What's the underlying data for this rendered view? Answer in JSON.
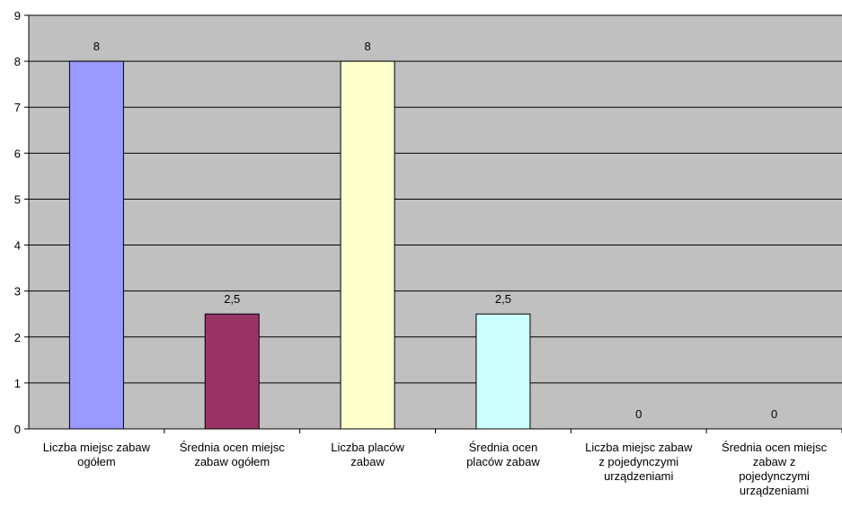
{
  "chart_data": {
    "type": "bar",
    "categories": [
      [
        "Liczba miejsc zabaw",
        "ogółem"
      ],
      [
        "Średnia ocen miejsc",
        "zabaw ogółem"
      ],
      [
        "Liczba placów",
        "zabaw"
      ],
      [
        "Średnia ocen",
        "placów zabaw"
      ],
      [
        "Liczba miejsc zabaw",
        "z pojedynczymi",
        "urządzeniami"
      ],
      [
        "Średnia ocen miejsc",
        "zabaw z",
        "pojedynczymi",
        "urządzeniami"
      ]
    ],
    "values": [
      8,
      2.5,
      8,
      2.5,
      0,
      0
    ],
    "data_labels": [
      "8",
      "2,5",
      "8",
      "2,5",
      "0",
      "0"
    ],
    "bar_colors": [
      "#9999ff",
      "#993366",
      "#ffffcc",
      "#ccffff",
      "#9999ff",
      "#993366"
    ],
    "ylim": [
      0,
      9
    ],
    "yticks": [
      "0",
      "1",
      "2",
      "3",
      "4",
      "5",
      "6",
      "7",
      "8",
      "9"
    ],
    "plot_background": "#c0c0c0",
    "grid": true,
    "legend": "none"
  }
}
